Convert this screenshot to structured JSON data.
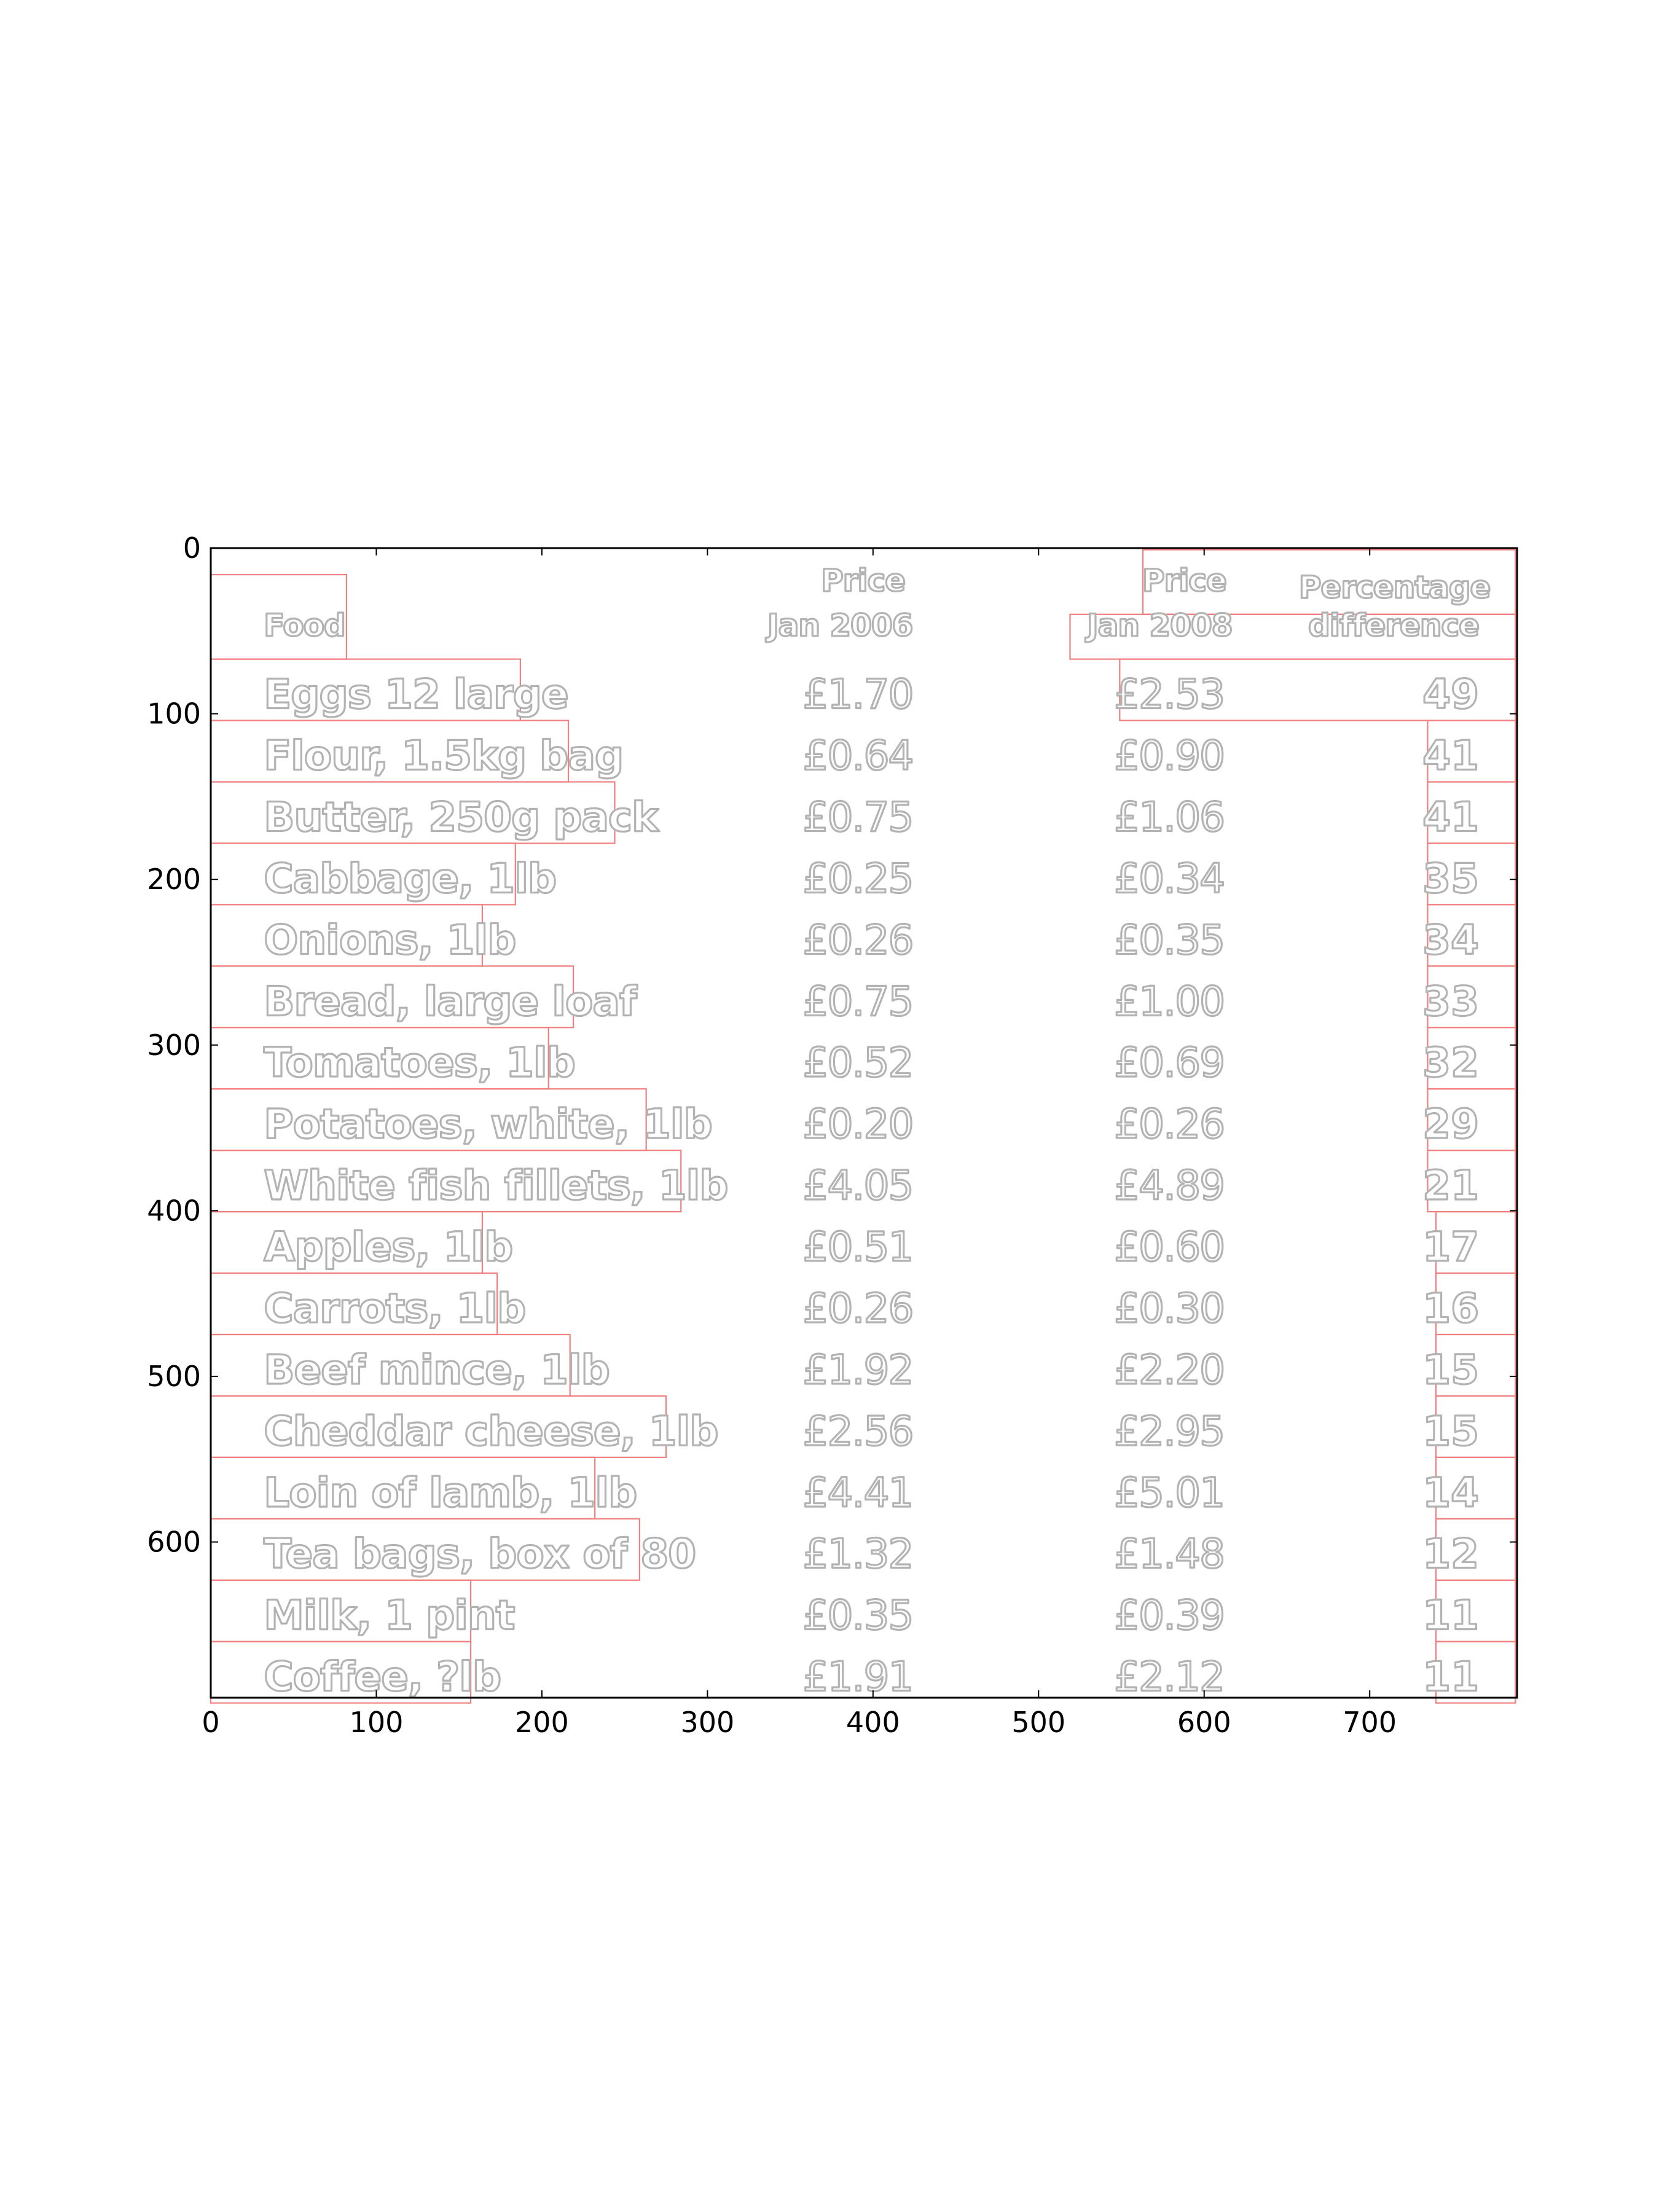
{
  "colors": {
    "text_outline": "#b3b3b3",
    "box": "#f08080",
    "axes": "#000000",
    "background": "#ffffff"
  },
  "axes": {
    "x_range": [
      0,
      789
    ],
    "y_range": [
      0,
      694
    ],
    "y_inverted": true,
    "x_ticks": [
      0,
      100,
      200,
      300,
      400,
      500,
      600,
      700
    ],
    "y_ticks": [
      0,
      100,
      200,
      300,
      400,
      500,
      600
    ]
  },
  "table": {
    "headers": {
      "food": "Food",
      "price_2006": [
        "Price",
        "Jan 2006"
      ],
      "price_2008": [
        "Price",
        "Jan 2008"
      ],
      "difference": [
        "Percentage",
        "difference"
      ]
    },
    "rows": [
      {
        "food": "Eggs 12 large",
        "p2006": "£1.70",
        "p2008": "£2.53",
        "diff": "49"
      },
      {
        "food": "Flour, 1.5kg bag",
        "p2006": "£0.64",
        "p2008": "£0.90",
        "diff": "41"
      },
      {
        "food": "Butter, 250g pack",
        "p2006": "£0.75",
        "p2008": "£1.06",
        "diff": "41"
      },
      {
        "food": "Cabbage, 1lb",
        "p2006": "£0.25",
        "p2008": "£0.34",
        "diff": "35"
      },
      {
        "food": "Onions, 1lb",
        "p2006": "£0.26",
        "p2008": "£0.35",
        "diff": "34"
      },
      {
        "food": "Bread, large loaf",
        "p2006": "£0.75",
        "p2008": "£1.00",
        "diff": "33"
      },
      {
        "food": "Tomatoes, 1lb",
        "p2006": "£0.52",
        "p2008": "£0.69",
        "diff": "32"
      },
      {
        "food": "Potatoes, white, 1lb",
        "p2006": "£0.20",
        "p2008": "£0.26",
        "diff": "29"
      },
      {
        "food": "White fish fillets, 1lb",
        "p2006": "£4.05",
        "p2008": "£4.89",
        "diff": "21"
      },
      {
        "food": "Apples, 1lb",
        "p2006": "£0.51",
        "p2008": "£0.60",
        "diff": "17"
      },
      {
        "food": "Carrots, 1lb",
        "p2006": "£0.26",
        "p2008": "£0.30",
        "diff": "16"
      },
      {
        "food": "Beef mince, 1lb",
        "p2006": "£1.92",
        "p2008": "£2.20",
        "diff": "15"
      },
      {
        "food": "Cheddar cheese, 1lb",
        "p2006": "£2.56",
        "p2008": "£2.95",
        "diff": "15"
      },
      {
        "food": "Loin of lamb, 1lb",
        "p2006": "£4.41",
        "p2008": "£5.01",
        "diff": "14"
      },
      {
        "food": "Tea bags, box of 80",
        "p2006": "£1.32",
        "p2008": "£1.48",
        "diff": "12"
      },
      {
        "food": "Milk, 1 pint",
        "p2006": "£0.35",
        "p2008": "£0.39",
        "diff": "11"
      },
      {
        "food": "Coffee, ?lb",
        "p2006": "£1.91",
        "p2008": "£2.12",
        "diff": "11"
      }
    ]
  }
}
